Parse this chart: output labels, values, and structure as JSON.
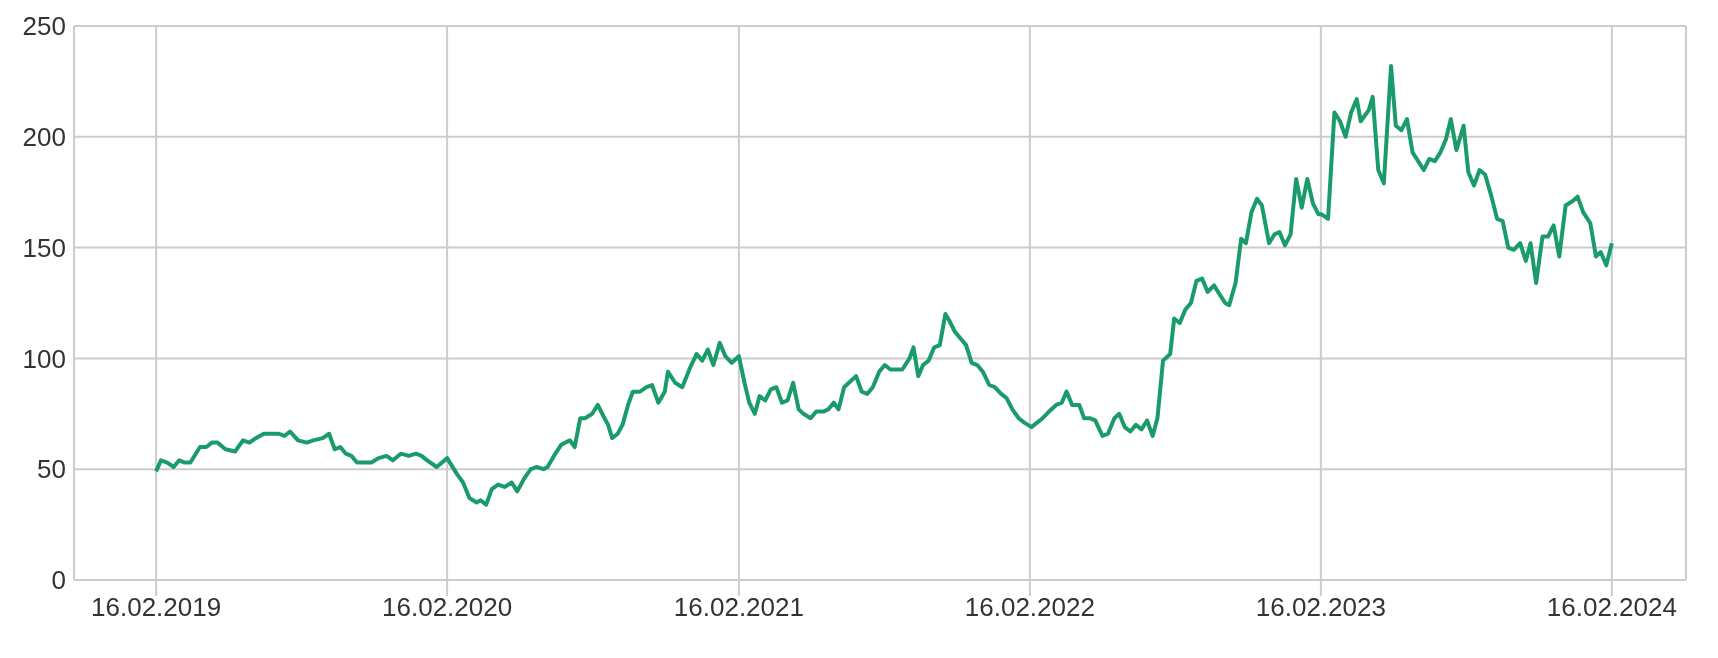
{
  "chart_data": {
    "type": "line",
    "x": [
      "2019-02-16",
      "2019-02-22",
      "2019-03-02",
      "2019-03-10",
      "2019-03-17",
      "2019-03-24",
      "2019-03-31",
      "2019-04-12",
      "2019-04-20",
      "2019-04-27",
      "2019-05-04",
      "2019-05-14",
      "2019-05-26",
      "2019-06-05",
      "2019-06-13",
      "2019-06-21",
      "2019-07-01",
      "2019-07-10",
      "2019-07-20",
      "2019-07-27",
      "2019-08-03",
      "2019-08-13",
      "2019-08-24",
      "2019-09-01",
      "2019-09-13",
      "2019-09-21",
      "2019-09-28",
      "2019-10-05",
      "2019-10-12",
      "2019-10-19",
      "2019-10-26",
      "2019-11-06",
      "2019-11-13",
      "2019-11-22",
      "2019-12-02",
      "2019-12-10",
      "2019-12-20",
      "2019-12-30",
      "2020-01-08",
      "2020-01-15",
      "2020-01-22",
      "2020-02-03",
      "2020-02-16",
      "2020-02-28",
      "2020-03-07",
      "2020-03-15",
      "2020-03-24",
      "2020-03-29",
      "2020-04-05",
      "2020-04-12",
      "2020-04-20",
      "2020-04-28",
      "2020-05-07",
      "2020-05-14",
      "2020-05-23",
      "2020-05-31",
      "2020-06-07",
      "2020-06-16",
      "2020-06-21",
      "2020-06-29",
      "2020-07-08",
      "2020-07-19",
      "2020-07-25",
      "2020-08-01",
      "2020-08-07",
      "2020-08-16",
      "2020-08-23",
      "2020-08-30",
      "2020-09-05",
      "2020-09-10",
      "2020-09-17",
      "2020-09-23",
      "2020-09-30",
      "2020-10-06",
      "2020-10-15",
      "2020-10-23",
      "2020-10-30",
      "2020-11-07",
      "2020-11-15",
      "2020-11-19",
      "2020-11-28",
      "2020-12-07",
      "2020-12-17",
      "2020-12-25",
      "2021-01-01",
      "2021-01-08",
      "2021-01-15",
      "2021-01-23",
      "2021-01-30",
      "2021-02-07",
      "2021-02-16",
      "2021-02-23",
      "2021-03-01",
      "2021-03-08",
      "2021-03-14",
      "2021-03-21",
      "2021-03-28",
      "2021-04-04",
      "2021-04-11",
      "2021-04-18",
      "2021-04-25",
      "2021-05-02",
      "2021-05-08",
      "2021-05-17",
      "2021-05-24",
      "2021-06-02",
      "2021-06-08",
      "2021-06-15",
      "2021-06-21",
      "2021-06-28",
      "2021-07-07",
      "2021-07-13",
      "2021-07-20",
      "2021-07-27",
      "2021-08-03",
      "2021-08-11",
      "2021-08-18",
      "2021-08-25",
      "2021-09-02",
      "2021-09-09",
      "2021-09-18",
      "2021-09-23",
      "2021-09-29",
      "2021-10-05",
      "2021-10-12",
      "2021-10-19",
      "2021-10-26",
      "2021-11-02",
      "2021-11-07",
      "2021-11-14",
      "2021-11-21",
      "2021-11-28",
      "2021-12-05",
      "2021-12-12",
      "2021-12-19",
      "2021-12-27",
      "2022-01-03",
      "2022-01-11",
      "2022-01-18",
      "2022-01-25",
      "2022-02-02",
      "2022-02-09",
      "2022-02-18",
      "2022-02-25",
      "2022-03-04",
      "2022-03-12",
      "2022-03-21",
      "2022-03-28",
      "2022-04-03",
      "2022-04-10",
      "2022-04-19",
      "2022-04-25",
      "2022-05-02",
      "2022-05-09",
      "2022-05-18",
      "2022-05-25",
      "2022-06-02",
      "2022-06-08",
      "2022-06-15",
      "2022-06-22",
      "2022-06-29",
      "2022-07-06",
      "2022-07-13",
      "2022-07-20",
      "2022-07-26",
      "2022-08-02",
      "2022-08-11",
      "2022-08-16",
      "2022-08-23",
      "2022-08-30",
      "2022-09-06",
      "2022-09-13",
      "2022-09-20",
      "2022-09-27",
      "2022-10-05",
      "2022-10-10",
      "2022-10-19",
      "2022-10-24",
      "2022-11-01",
      "2022-11-08",
      "2022-11-14",
      "2022-11-21",
      "2022-11-28",
      "2022-12-04",
      "2022-12-13",
      "2022-12-20",
      "2022-12-26",
      "2023-01-02",
      "2023-01-09",
      "2023-01-16",
      "2023-01-23",
      "2023-01-30",
      "2023-02-06",
      "2023-02-13",
      "2023-02-17",
      "2023-02-25",
      "2023-03-05",
      "2023-03-12",
      "2023-03-19",
      "2023-03-26",
      "2023-04-02",
      "2023-04-07",
      "2023-04-17",
      "2023-04-22",
      "2023-04-29",
      "2023-05-06",
      "2023-05-15",
      "2023-05-21",
      "2023-05-28",
      "2023-06-04",
      "2023-06-11",
      "2023-06-18",
      "2023-06-25",
      "2023-07-02",
      "2023-07-09",
      "2023-07-16",
      "2023-07-23",
      "2023-07-29",
      "2023-08-05",
      "2023-08-14",
      "2023-08-20",
      "2023-08-27",
      "2023-09-03",
      "2023-09-10",
      "2023-09-18",
      "2023-09-25",
      "2023-10-02",
      "2023-10-09",
      "2023-10-16",
      "2023-10-24",
      "2023-10-31",
      "2023-11-06",
      "2023-11-13",
      "2023-11-21",
      "2023-11-28",
      "2023-12-05",
      "2023-12-12",
      "2023-12-20",
      "2023-12-29",
      "2024-01-04",
      "2024-01-11",
      "2024-01-20",
      "2024-01-27",
      "2024-02-02",
      "2024-02-09",
      "2024-02-16"
    ],
    "series": [
      {
        "color": "#1a9c6a",
        "values": [
          49,
          54,
          53,
          51,
          54,
          53,
          53,
          60,
          60,
          62,
          62,
          59,
          58,
          63,
          62,
          64,
          66,
          66,
          66,
          65,
          67,
          63,
          62,
          63,
          64,
          66,
          59,
          60,
          57,
          56,
          53,
          53,
          53,
          55,
          56,
          54,
          57,
          56,
          57,
          56,
          54,
          51,
          55,
          48,
          44,
          37,
          35,
          36,
          34,
          41,
          43,
          42,
          44,
          40,
          46,
          50,
          51,
          50,
          51,
          56,
          61,
          63,
          60,
          73,
          73,
          75,
          79,
          74,
          70,
          64,
          66,
          70,
          79,
          85,
          85,
          87,
          88,
          80,
          85,
          94,
          89,
          87,
          96,
          102,
          99,
          104,
          97,
          107,
          101,
          98,
          101,
          89,
          80,
          75,
          83,
          81,
          86,
          87,
          80,
          81,
          89,
          77,
          75,
          73,
          76,
          76,
          77,
          80,
          77,
          87,
          90,
          92,
          85,
          84,
          87,
          94,
          97,
          95,
          95,
          95,
          100,
          105,
          92,
          97,
          99,
          105,
          106,
          120,
          117,
          112,
          109,
          106,
          98,
          97,
          94,
          88,
          87,
          84,
          82,
          77,
          73,
          71,
          69,
          71,
          73,
          76,
          79,
          80,
          85,
          79,
          79,
          73,
          73,
          72,
          65,
          66,
          73,
          75,
          69,
          67,
          70,
          68,
          72,
          65,
          73,
          99,
          102,
          118,
          116,
          122,
          125,
          135,
          136,
          130,
          133,
          130,
          125,
          124,
          134,
          154,
          152,
          166,
          172,
          169,
          152,
          156,
          157,
          151,
          156,
          181,
          168,
          181,
          170,
          165,
          165,
          163,
          211,
          207,
          200,
          211,
          217,
          207,
          212,
          218,
          185,
          179,
          232,
          205,
          203,
          208,
          193,
          189,
          185,
          190,
          189,
          193,
          199,
          208,
          194,
          205,
          184,
          178,
          185,
          183,
          173,
          163,
          162,
          150,
          149,
          152,
          144,
          152,
          134,
          155,
          155,
          160,
          146,
          169,
          171,
          173,
          166,
          161,
          146,
          148,
          142,
          152
        ]
      }
    ],
    "xlim": [
      "2018-11-05",
      "2024-05-19"
    ],
    "xticks": [
      {
        "value": "2019-02-16",
        "label": "16.02.2019"
      },
      {
        "value": "2020-02-16",
        "label": "16.02.2020"
      },
      {
        "value": "2021-02-16",
        "label": "16.02.2021"
      },
      {
        "value": "2022-02-16",
        "label": "16.02.2022"
      },
      {
        "value": "2023-02-16",
        "label": "16.02.2023"
      },
      {
        "value": "2024-02-16",
        "label": "16.02.2024"
      }
    ],
    "ylim": [
      0,
      250
    ],
    "yticks": [
      0,
      50,
      100,
      150,
      200,
      250
    ],
    "grid": true,
    "marker": "none",
    "line_style": "solid"
  }
}
